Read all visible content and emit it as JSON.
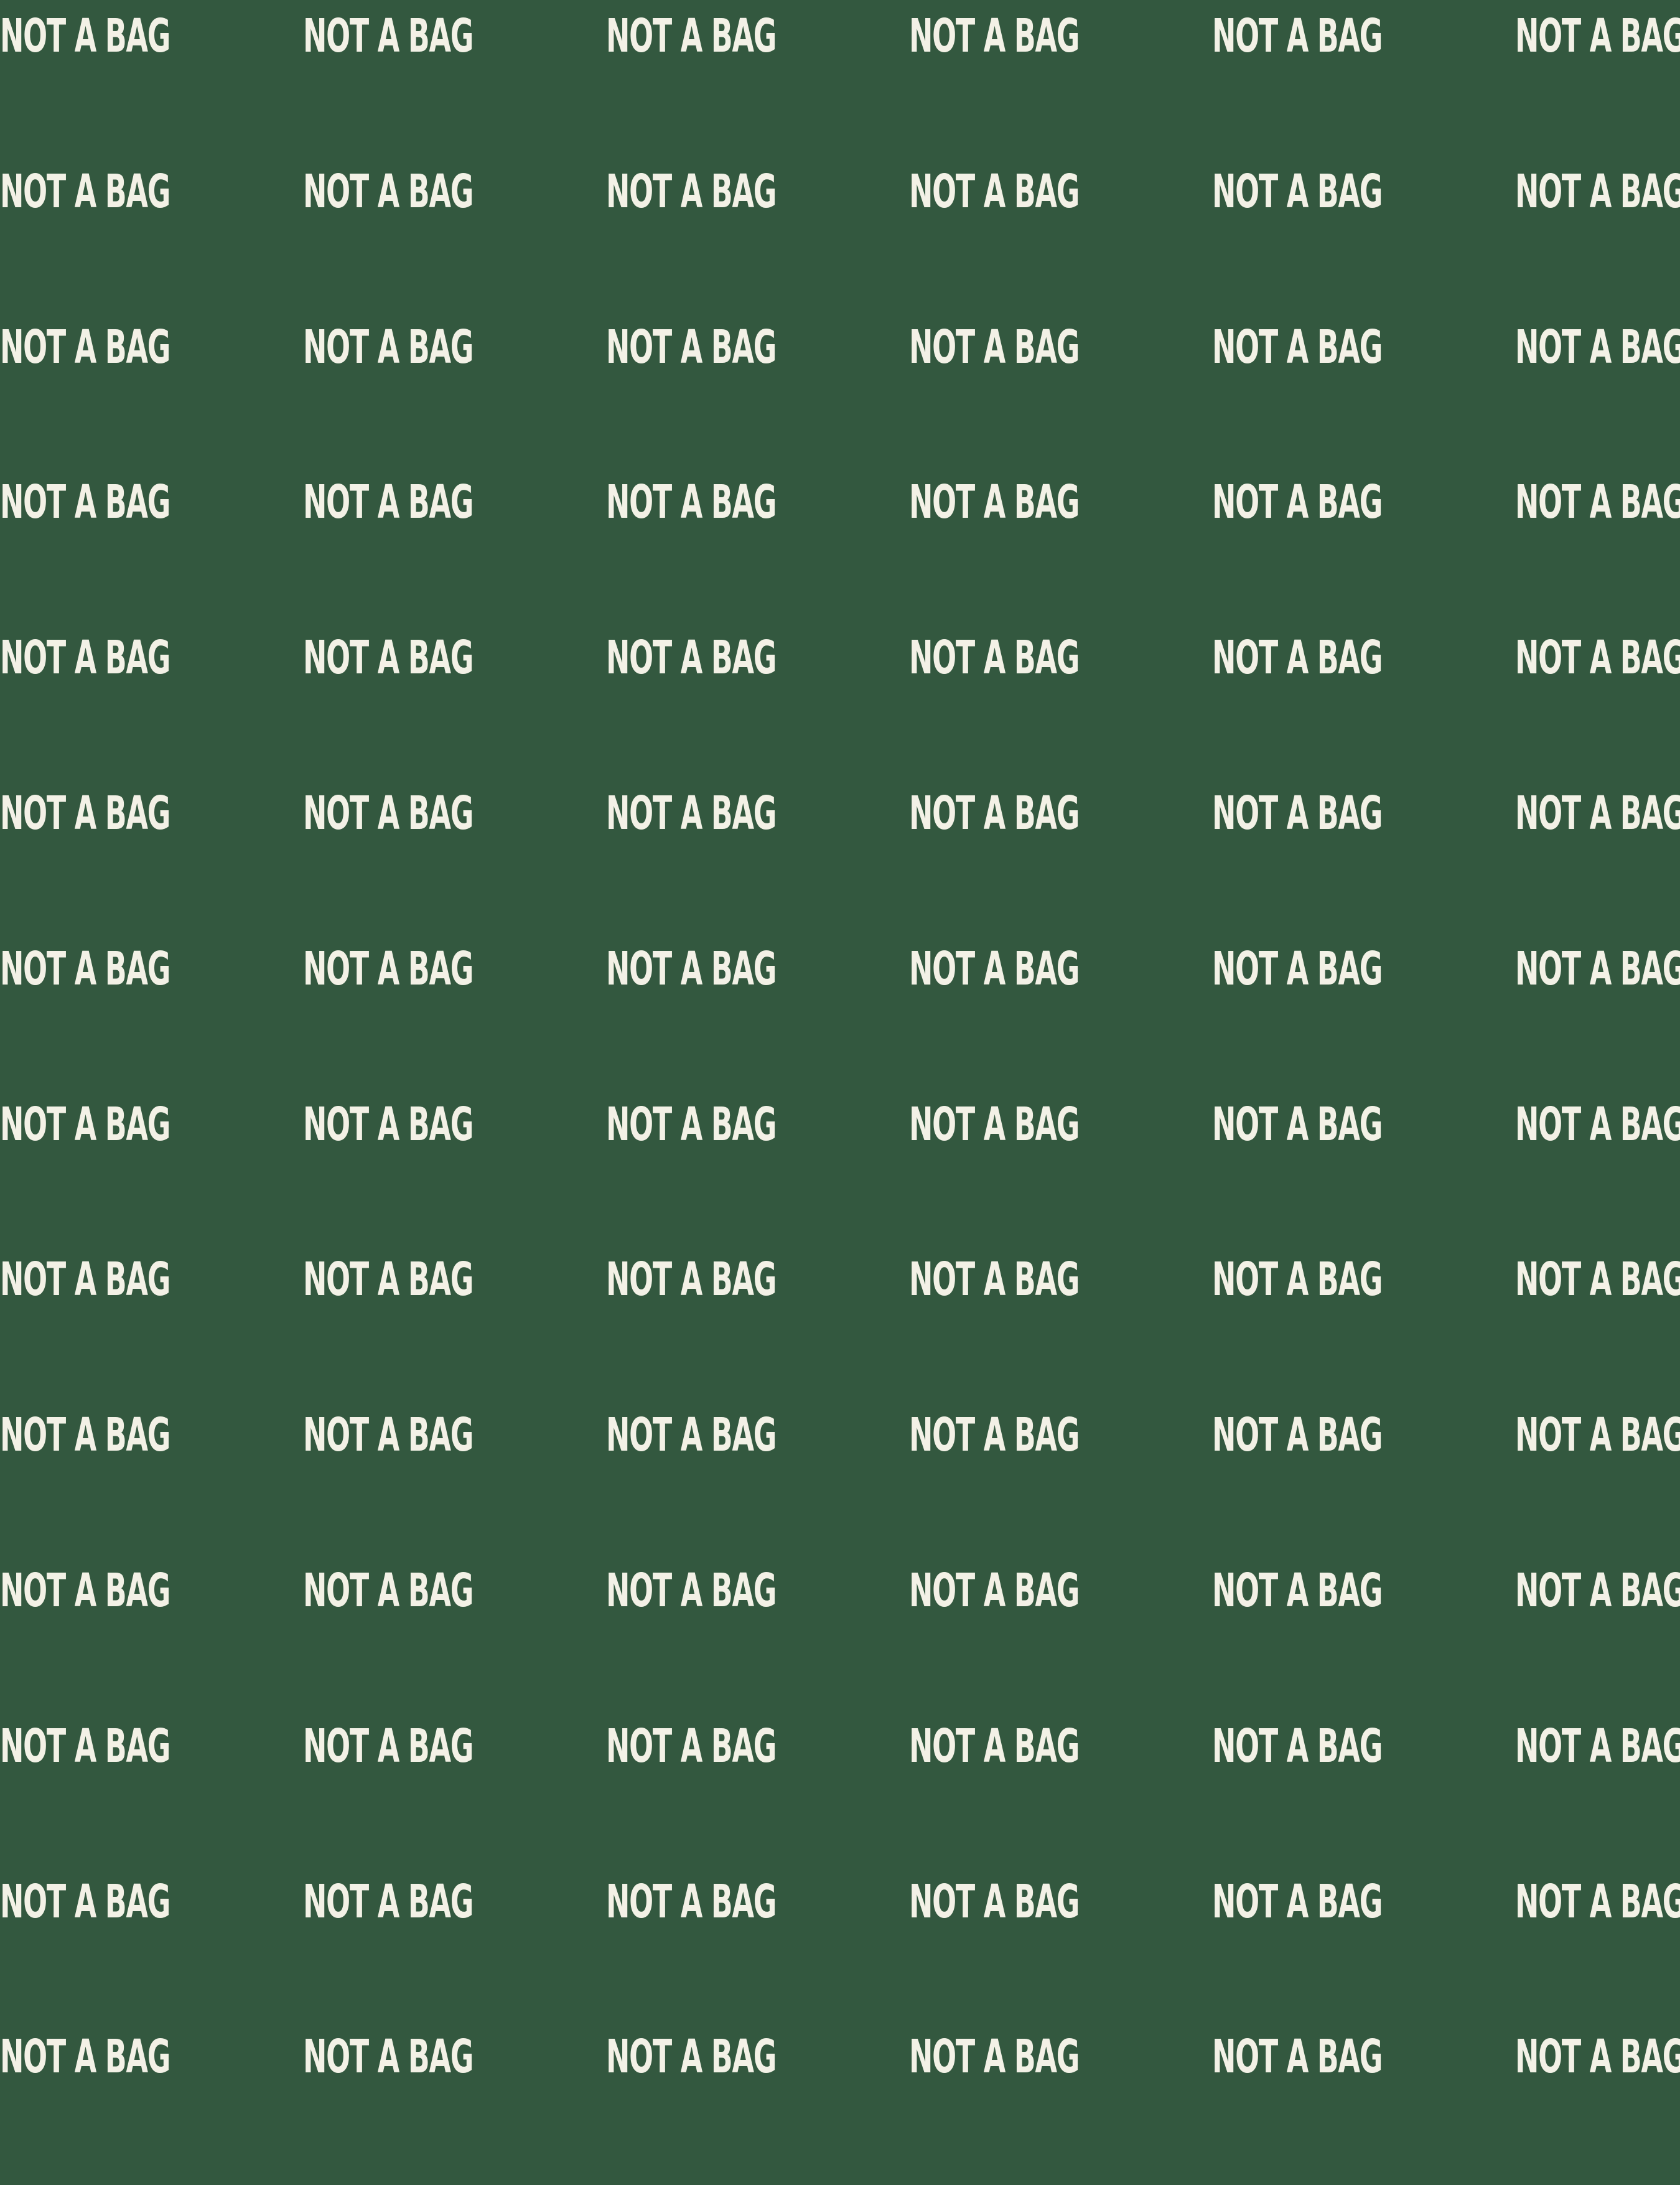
{
  "background_color": "#33583f",
  "text_color": "#f3f1e6",
  "pattern": {
    "text": "NOT A BAG",
    "rows": 14,
    "columns": 6
  }
}
